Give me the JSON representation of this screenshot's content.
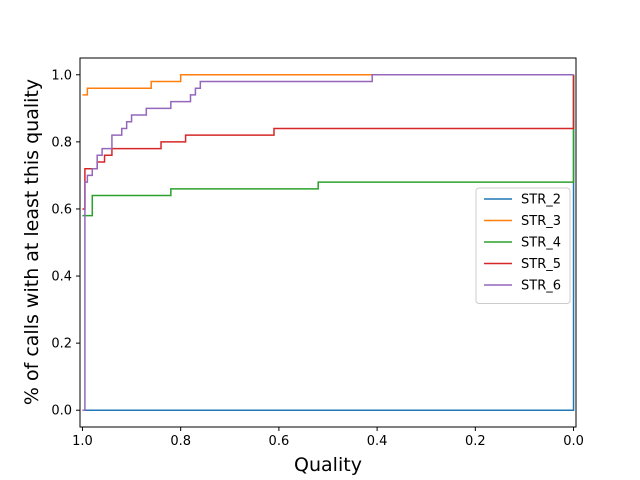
{
  "chart_data": {
    "type": "line",
    "title": "",
    "xlabel": "Quality",
    "ylabel": "% of calls with at least this quality",
    "xlim": [
      1.0,
      0.0
    ],
    "ylim": [
      0.0,
      1.0
    ],
    "x_inverted": true,
    "x_ticks": [
      1.0,
      0.8,
      0.6,
      0.4,
      0.2,
      0.0
    ],
    "x_tick_labels": [
      "1.0",
      "0.8",
      "0.6",
      "0.4",
      "0.2",
      "0.0"
    ],
    "y_ticks": [
      0.0,
      0.2,
      0.4,
      0.6,
      0.8,
      1.0
    ],
    "y_tick_labels": [
      "0.0",
      "0.2",
      "0.4",
      "0.6",
      "0.8",
      "1.0"
    ],
    "grid": false,
    "legend_position": "center-right",
    "series": [
      {
        "name": "STR_2",
        "color": "#1f77b4",
        "x": [
          1.0,
          0.0,
          0.0
        ],
        "y": [
          0.0,
          0.0,
          1.0
        ]
      },
      {
        "name": "STR_3",
        "color": "#ff7f0e",
        "x": [
          1.0,
          0.995,
          0.99,
          0.86,
          0.8,
          0.41,
          0.0
        ],
        "y": [
          0.94,
          0.94,
          0.96,
          0.98,
          1.0,
          1.0,
          1.0
        ]
      },
      {
        "name": "STR_4",
        "color": "#2ca02c",
        "x": [
          1.0,
          0.99,
          0.98,
          0.82,
          0.52,
          0.0,
          0.0
        ],
        "y": [
          0.58,
          0.58,
          0.64,
          0.66,
          0.68,
          0.68,
          1.0
        ]
      },
      {
        "name": "STR_5",
        "color": "#d62728",
        "x": [
          1.0,
          0.995,
          0.97,
          0.955,
          0.94,
          0.84,
          0.79,
          0.61,
          0.0,
          0.0
        ],
        "y": [
          0.6,
          0.72,
          0.74,
          0.76,
          0.78,
          0.8,
          0.82,
          0.84,
          0.84,
          1.0
        ]
      },
      {
        "name": "STR_6",
        "color": "#9467bd",
        "x": [
          1.0,
          0.995,
          0.99,
          0.98,
          0.97,
          0.96,
          0.94,
          0.92,
          0.91,
          0.9,
          0.89,
          0.87,
          0.82,
          0.78,
          0.77,
          0.76,
          0.41,
          0.0
        ],
        "y": [
          0.0,
          0.68,
          0.7,
          0.72,
          0.76,
          0.78,
          0.82,
          0.84,
          0.86,
          0.88,
          0.88,
          0.9,
          0.92,
          0.94,
          0.96,
          0.98,
          1.0,
          1.0
        ]
      }
    ]
  }
}
